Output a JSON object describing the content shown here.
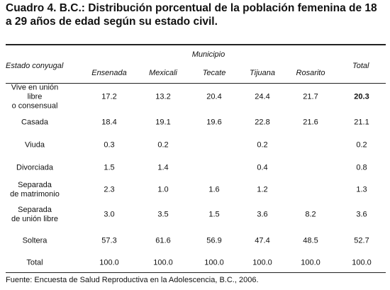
{
  "title": "Cuadro 4. B.C.: Distribución porcentual de la población femenina de 18 a 29 años de edad según su estado civil.",
  "header": {
    "estado": "Estado conyugal",
    "municipio": "Municipio",
    "columns": [
      "Ensenada",
      "Mexicali",
      "Tecate",
      "Tijuana",
      "Rosarito"
    ],
    "total": "Total"
  },
  "rows": [
    {
      "label": "Vive en unión libre\no consensual",
      "values": [
        "17.2",
        "13.2",
        "20.4",
        "24.4",
        "21.7",
        "20.3"
      ]
    },
    {
      "label": "Casada",
      "values": [
        "18.4",
        "19.1",
        "19.6",
        "22.8",
        "21.6",
        "21.1"
      ]
    },
    {
      "label": "Viuda",
      "values": [
        "0.3",
        "0.2",
        "",
        "0.2",
        "",
        "0.2"
      ]
    },
    {
      "label": "Divorciada",
      "values": [
        "1.5",
        "1.4",
        "",
        "0.4",
        "",
        "0.8"
      ]
    },
    {
      "label": "Separada\nde matrimonio",
      "values": [
        "2.3",
        "1.0",
        "1.6",
        "1.2",
        "",
        "1.3"
      ]
    },
    {
      "label": "Separada\nde unión libre",
      "values": [
        "3.0",
        "3.5",
        "1.5",
        "3.6",
        "8.2",
        "3.6"
      ]
    },
    {
      "label": "Soltera",
      "values": [
        "57.3",
        "61.6",
        "56.9",
        "47.4",
        "48.5",
        "52.7"
      ]
    },
    {
      "label": "Total",
      "values": [
        "100.0",
        "100.0",
        "100.0",
        "100.0",
        "100.0",
        "100.0"
      ]
    }
  ],
  "source": "Fuente: Encuesta de Salud Reproductiva en la Adolescencia, B.C., 2006."
}
